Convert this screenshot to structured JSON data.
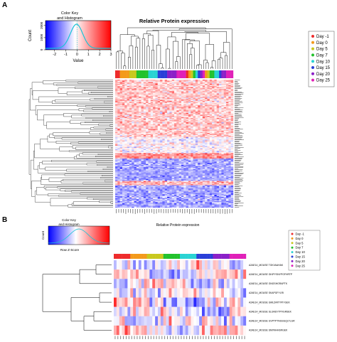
{
  "chart_data": [
    {
      "panel_label": "A",
      "type": "heatmap",
      "title": "Relative Protein expression",
      "color_key": {
        "title_line1": "Color Key",
        "title_line2": "and Histogram",
        "xlabel": "Value",
        "ylabel": "Count",
        "xticks": [
          "-2",
          "-1",
          "0",
          "1",
          "2",
          "3"
        ],
        "yticks": [
          "0",
          "1000",
          "2000"
        ],
        "x_range": [
          -2.8,
          3
        ],
        "low_color": "#1a1aff",
        "mid_color": "#ffffff",
        "high_color": "#ff1a1a",
        "histogram_color": "#19c3d6"
      },
      "legend": {
        "position": "top-right",
        "items": [
          {
            "label": "Day -1",
            "color": "#ee2c2c"
          },
          {
            "label": "Day 0",
            "color": "#f39a1b"
          },
          {
            "label": "Day 5",
            "color": "#c8c81e"
          },
          {
            "label": "Day 7",
            "color": "#22c22c"
          },
          {
            "label": "Day 10",
            "color": "#2ad3d3"
          },
          {
            "label": "Day 15",
            "color": "#2a3fd8"
          },
          {
            "label": "Day 20",
            "color": "#8b20c8"
          },
          {
            "label": "Day 25",
            "color": "#e020b8"
          }
        ]
      },
      "col_annotation": [
        0,
        0,
        1,
        1,
        1,
        1,
        2,
        2,
        2,
        3,
        3,
        3,
        3,
        3,
        4,
        4,
        4,
        4,
        5,
        5,
        5,
        5,
        6,
        6,
        6,
        6,
        7,
        7,
        7,
        7,
        0,
        1,
        2,
        3,
        4,
        5,
        6,
        7,
        1,
        2,
        3,
        3,
        4,
        4,
        5,
        6,
        6,
        7,
        7,
        7
      ]
    },
    {
      "panel_label": "B",
      "type": "heatmap",
      "title": "Relative Protein expression",
      "color_key": {
        "title_line1": "Color Key",
        "title_line2": "and Histogram",
        "xlabel": "Row Z-Score",
        "ylabel": "Count",
        "low_color": "#1a1aff",
        "mid_color": "#ffffff",
        "high_color": "#ff1a1a"
      },
      "legend": {
        "position": "top-right",
        "items": [
          {
            "label": "Day -1",
            "color": "#ee2c2c"
          },
          {
            "label": "Day 0",
            "color": "#f39a1b"
          },
          {
            "label": "Day 5",
            "color": "#c8c81e"
          },
          {
            "label": "Day 7",
            "color": "#22c22c"
          },
          {
            "label": "Day 10",
            "color": "#2ad3d3"
          },
          {
            "label": "Day 15",
            "color": "#2a3fd8"
          },
          {
            "label": "Day 20",
            "color": "#8b20c8"
          },
          {
            "label": "Day 25",
            "color": "#e020b8"
          }
        ]
      },
      "col_annotation": [
        0,
        0,
        0,
        0,
        0,
        0,
        1,
        1,
        1,
        1,
        1,
        1,
        2,
        2,
        2,
        2,
        2,
        2,
        3,
        3,
        3,
        3,
        3,
        3,
        4,
        4,
        4,
        4,
        4,
        4,
        5,
        5,
        5,
        5,
        5,
        5,
        6,
        6,
        6,
        6,
        6,
        6,
        7,
        7,
        7,
        7,
        7,
        7
      ],
      "row_labels": [
        "A2AE14_MOUSE TGKVAAHAK",
        "A2AE14_MOUSE GKIPYSNYPGFHRTP",
        "A2AE14_MOUSE GNGSHGRAPTK",
        "A2AE14_MOUSE SKAPGFYLRI",
        "A2AE14_MOUSE GMLDIRTYPIYGEK",
        "A2AE14_MOUSE SLGNSYTPVGRSEK",
        "A2AE14_MOUSE GVPTPTNGSGQLTLGR",
        "A2AE14_MOUSE SMVNHHSRGEK"
      ]
    }
  ]
}
